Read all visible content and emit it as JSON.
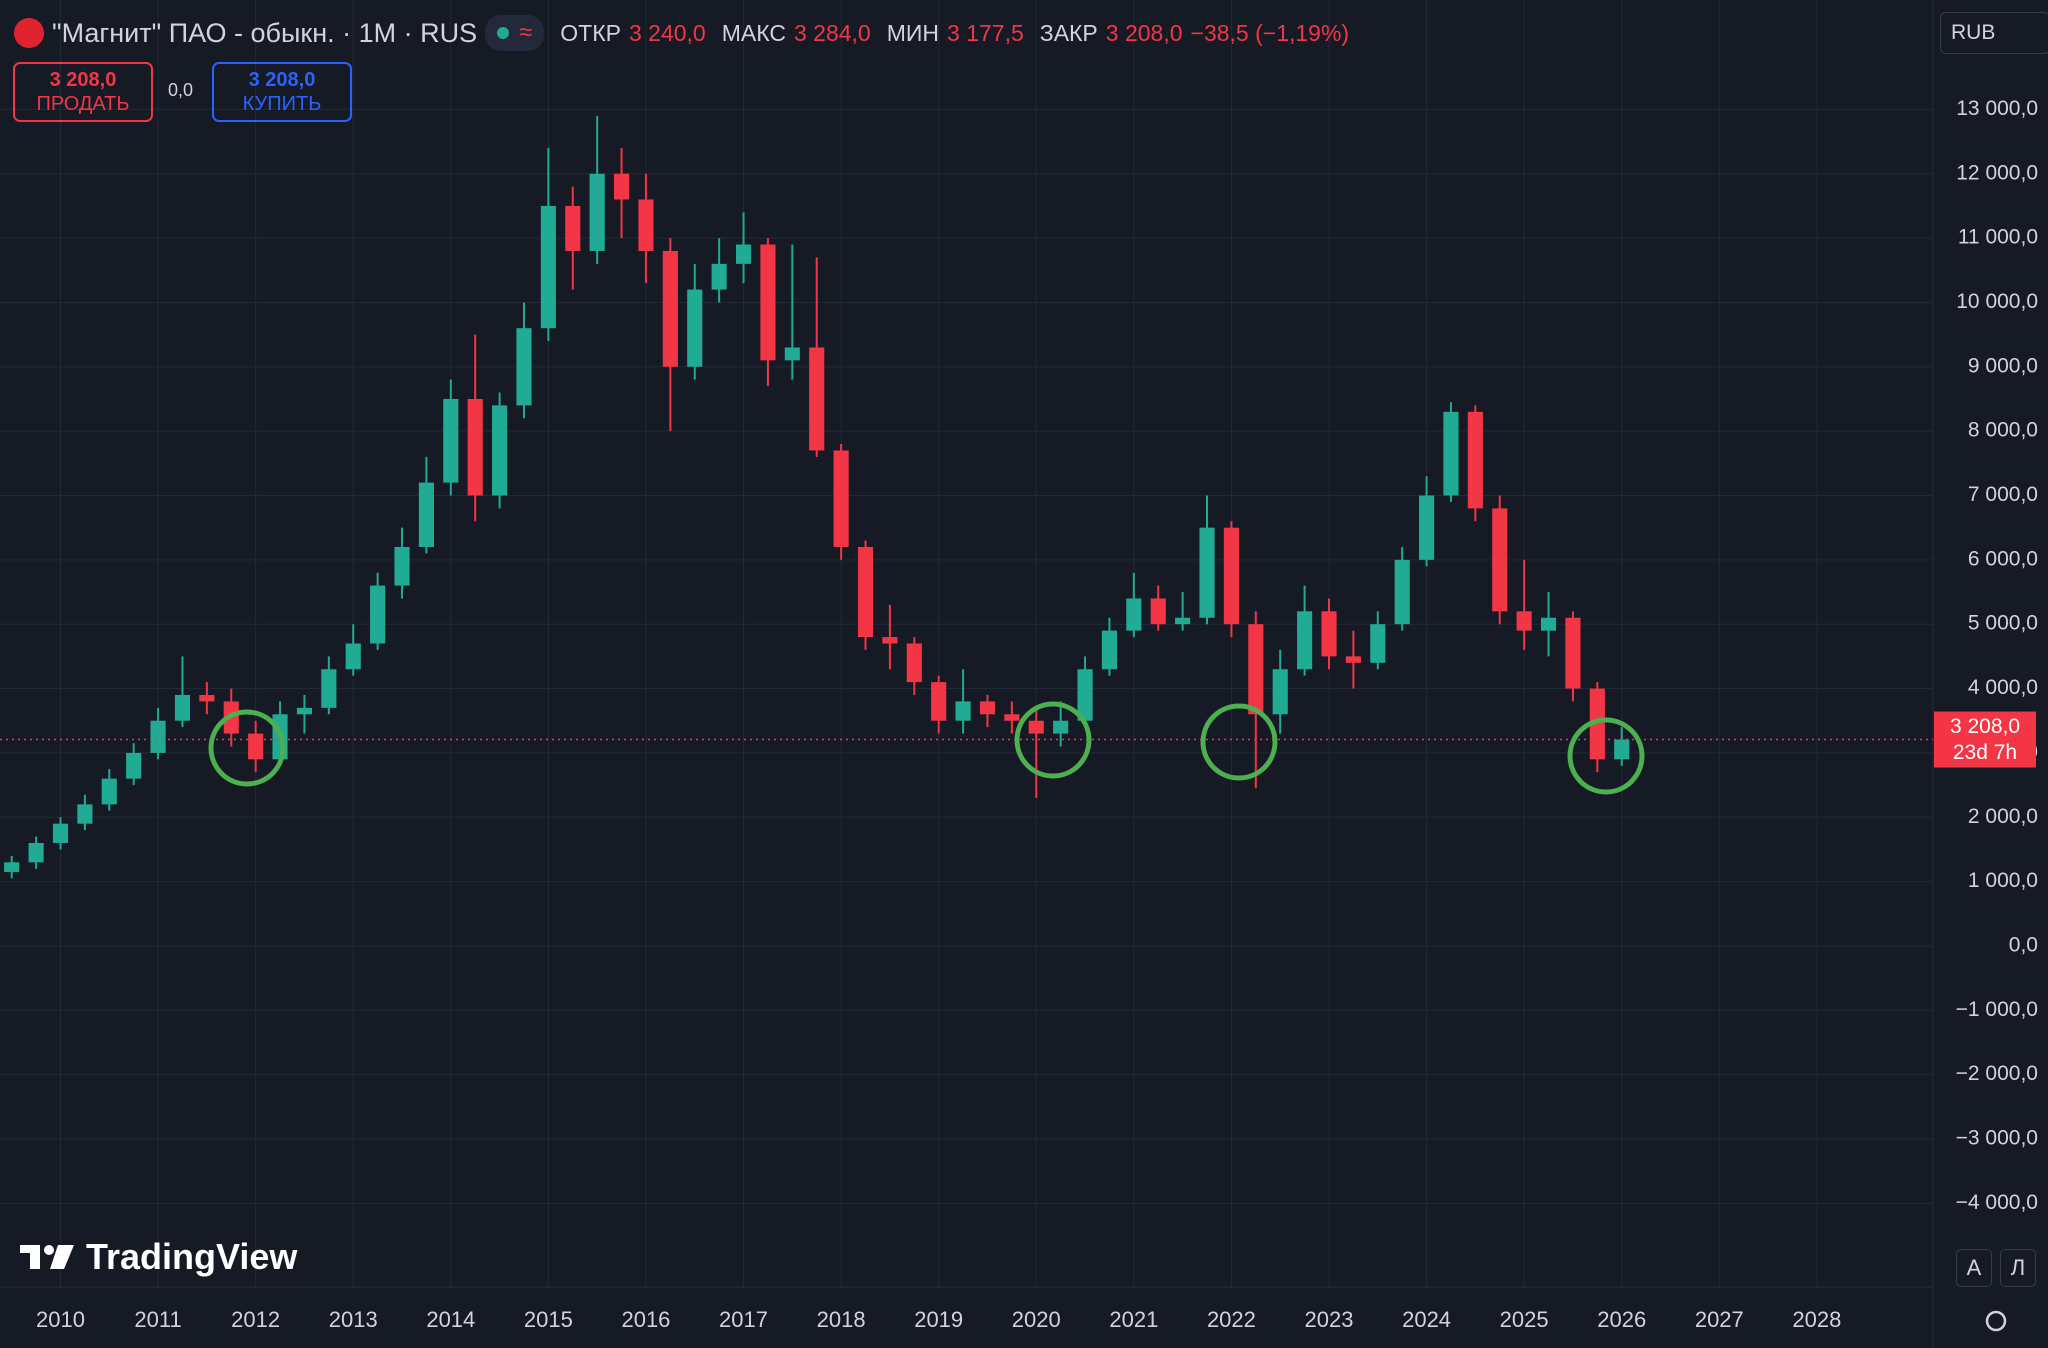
{
  "header": {
    "title": "\"Магнит\" ПАО - обыкн. · 1M · RUS",
    "open_label": "ОТКР",
    "open": "3 240,0",
    "high_label": "МАКС",
    "high": "3 284,0",
    "low_label": "МИН",
    "low": "3 177,5",
    "close_label": "ЗАКР",
    "close": "3 208,0",
    "change": "−38,5 (−1,19%)",
    "currency": "RUB"
  },
  "trade": {
    "sell_price": "3 208,0",
    "sell_label": "ПРОДАТЬ",
    "spread": "0,0",
    "buy_price": "3 208,0",
    "buy_label": "КУПИТЬ"
  },
  "price_tag": {
    "price": "3 208,0",
    "countdown": "23d 7h"
  },
  "footer": {
    "brand": "TradingView",
    "auto": "A",
    "log": "Л"
  },
  "chart_data": {
    "type": "candlestick",
    "up_color": "#22ab94",
    "down_color": "#f23645",
    "grid": true,
    "xlim": [
      2009.38,
      2029.19
    ],
    "ylim": [
      -5300,
      14700
    ],
    "xticks": [
      2010,
      2011,
      2012,
      2013,
      2014,
      2015,
      2016,
      2017,
      2018,
      2019,
      2020,
      2021,
      2022,
      2023,
      2024,
      2025,
      2026,
      2027,
      2028
    ],
    "yticks": [
      {
        "value": -4000,
        "label": "−4 000,0"
      },
      {
        "value": -3000,
        "label": "−3 000,0"
      },
      {
        "value": -2000,
        "label": "−2 000,0"
      },
      {
        "value": -1000,
        "label": "−1 000,0"
      },
      {
        "value": 0,
        "label": "0,0"
      },
      {
        "value": 1000,
        "label": "1 000,0"
      },
      {
        "value": 2000,
        "label": "2 000,0"
      },
      {
        "value": 3000,
        "label": "3 000,0"
      },
      {
        "value": 4000,
        "label": "4 000,0"
      },
      {
        "value": 5000,
        "label": "5 000,0"
      },
      {
        "value": 6000,
        "label": "6 000,0"
      },
      {
        "value": 7000,
        "label": "7 000,0"
      },
      {
        "value": 8000,
        "label": "8 000,0"
      },
      {
        "value": 9000,
        "label": "9 000,0"
      },
      {
        "value": 10000,
        "label": "10 000,0"
      },
      {
        "value": 11000,
        "label": "11 000,0"
      },
      {
        "value": 12000,
        "label": "12 000,0"
      },
      {
        "value": 13000,
        "label": "13 000,0"
      }
    ],
    "x": [
      2009.5,
      2009.75,
      2010.0,
      2010.25,
      2010.5,
      2010.75,
      2011.0,
      2011.25,
      2011.5,
      2011.75,
      2012.0,
      2012.25,
      2012.5,
      2012.75,
      2013.0,
      2013.25,
      2013.5,
      2013.75,
      2014.0,
      2014.25,
      2014.5,
      2014.75,
      2015.0,
      2015.25,
      2015.5,
      2015.75,
      2016.0,
      2016.25,
      2016.5,
      2016.75,
      2017.0,
      2017.25,
      2017.5,
      2017.75,
      2018.0,
      2018.25,
      2018.5,
      2018.75,
      2019.0,
      2019.25,
      2019.5,
      2019.75,
      2020.0,
      2020.25,
      2020.5,
      2020.75,
      2021.0,
      2021.25,
      2021.5,
      2021.75,
      2022.0,
      2022.25,
      2022.5,
      2022.75,
      2023.0,
      2023.25,
      2023.5,
      2023.75,
      2024.0,
      2024.25,
      2024.5,
      2024.75,
      2025.0,
      2025.25,
      2025.5,
      2025.75,
      2026.0
    ],
    "open": [
      1150,
      1300,
      1600,
      1900,
      2200,
      2600,
      3000,
      3500,
      3900,
      3800,
      3300,
      2900,
      3600,
      3700,
      4300,
      4700,
      5600,
      6200,
      7200,
      8500,
      7000,
      8400,
      9600,
      11500,
      10800,
      12000,
      11600,
      10800,
      9000,
      10200,
      10600,
      10900,
      9100,
      9300,
      7700,
      6200,
      4800,
      4700,
      4100,
      3500,
      3800,
      3600,
      3500,
      3300,
      3500,
      4300,
      4900,
      5400,
      5000,
      5100,
      6500,
      5000,
      3600,
      4300,
      5200,
      4500,
      4400,
      5000,
      6000,
      7000,
      8300,
      6800,
      5200,
      4900,
      5100,
      4000,
      2900
    ],
    "high": [
      1400,
      1700,
      2000,
      2350,
      2750,
      3150,
      3700,
      4500,
      4100,
      4000,
      3500,
      3800,
      3900,
      4500,
      5000,
      5800,
      6500,
      7600,
      8800,
      9500,
      8600,
      10000,
      12400,
      11800,
      12900,
      12400,
      12000,
      11000,
      10600,
      11000,
      11400,
      11000,
      10900,
      10700,
      7800,
      6300,
      5300,
      4800,
      4200,
      4300,
      3900,
      3800,
      3700,
      3800,
      4500,
      5100,
      5800,
      5600,
      5500,
      7000,
      6600,
      5200,
      4600,
      5600,
      5400,
      4900,
      5200,
      6200,
      7300,
      8450,
      8400,
      7000,
      6000,
      5500,
      5200,
      4100,
      3400
    ],
    "low": [
      1050,
      1200,
      1500,
      1800,
      2100,
      2500,
      2900,
      3400,
      3600,
      3100,
      2700,
      2800,
      3300,
      3600,
      4200,
      4600,
      5400,
      6100,
      7000,
      6600,
      6800,
      8200,
      9400,
      10200,
      10600,
      11000,
      10300,
      8000,
      8800,
      10000,
      10300,
      8700,
      8800,
      7600,
      6000,
      4600,
      4300,
      3900,
      3300,
      3300,
      3400,
      3300,
      2300,
      3100,
      3400,
      4200,
      4800,
      4900,
      4900,
      5000,
      4800,
      2450,
      3300,
      4200,
      4300,
      4000,
      4300,
      4900,
      5900,
      6900,
      6600,
      5000,
      4600,
      4500,
      3800,
      2700,
      2800
    ],
    "close": [
      1300,
      1600,
      1900,
      2200,
      2600,
      3000,
      3500,
      3900,
      3800,
      3300,
      2900,
      3600,
      3700,
      4300,
      4700,
      5600,
      6200,
      7200,
      8500,
      7000,
      8400,
      9600,
      11500,
      10800,
      12000,
      11600,
      10800,
      9000,
      10200,
      10600,
      10900,
      9100,
      9300,
      7700,
      6200,
      4800,
      4700,
      4100,
      3500,
      3800,
      3600,
      3500,
      3300,
      3500,
      4300,
      4900,
      5400,
      5000,
      5100,
      6500,
      5000,
      3600,
      4300,
      5200,
      4500,
      4400,
      5000,
      6000,
      7000,
      8300,
      6800,
      5200,
      4900,
      5100,
      4000,
      2900,
      3208
    ]
  }
}
